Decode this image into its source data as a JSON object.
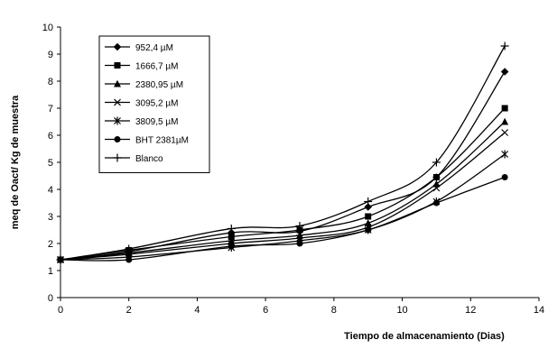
{
  "chart_data": {
    "type": "line",
    "xlabel": "Tiempo de almacenamiento (Dias)",
    "ylabel": "meq de Oact/ Kg de muestra",
    "xlim": [
      0,
      14
    ],
    "ylim": [
      0,
      10
    ],
    "x_ticks": [
      "0",
      "2",
      "4",
      "6",
      "8",
      "10",
      "12",
      "14"
    ],
    "y_ticks": [
      "0",
      "1",
      "2",
      "3",
      "4",
      "5",
      "6",
      "7",
      "8",
      "9",
      "10"
    ],
    "grid": false,
    "legend_position": "top-left",
    "x": [
      0,
      2,
      5,
      7,
      9,
      11,
      13
    ],
    "series": [
      {
        "name": "952,4 µM",
        "marker": "diamond",
        "values": [
          1.4,
          1.7,
          2.4,
          2.45,
          3.35,
          4.45,
          8.35
        ]
      },
      {
        "name": "1666,7 µM",
        "marker": "square",
        "values": [
          1.4,
          1.75,
          2.25,
          2.5,
          3.0,
          4.45,
          7.0
        ]
      },
      {
        "name": "2380,95 µM",
        "marker": "triangle",
        "values": [
          1.4,
          1.65,
          2.1,
          2.3,
          2.75,
          4.2,
          6.5
        ]
      },
      {
        "name": "3095,2 µM",
        "marker": "x",
        "values": [
          1.4,
          1.6,
          2.0,
          2.2,
          2.6,
          4.05,
          6.1
        ]
      },
      {
        "name": "3809,5 µM",
        "marker": "star",
        "values": [
          1.4,
          1.5,
          1.85,
          2.1,
          2.5,
          3.55,
          5.3
        ]
      },
      {
        "name": "BHT 2381µM",
        "marker": "circle",
        "values": [
          1.4,
          1.4,
          1.9,
          2.0,
          2.5,
          3.5,
          4.45
        ]
      },
      {
        "name": "Blanco",
        "marker": "plus",
        "values": [
          1.4,
          1.8,
          2.55,
          2.65,
          3.55,
          5.0,
          9.3
        ]
      }
    ]
  }
}
